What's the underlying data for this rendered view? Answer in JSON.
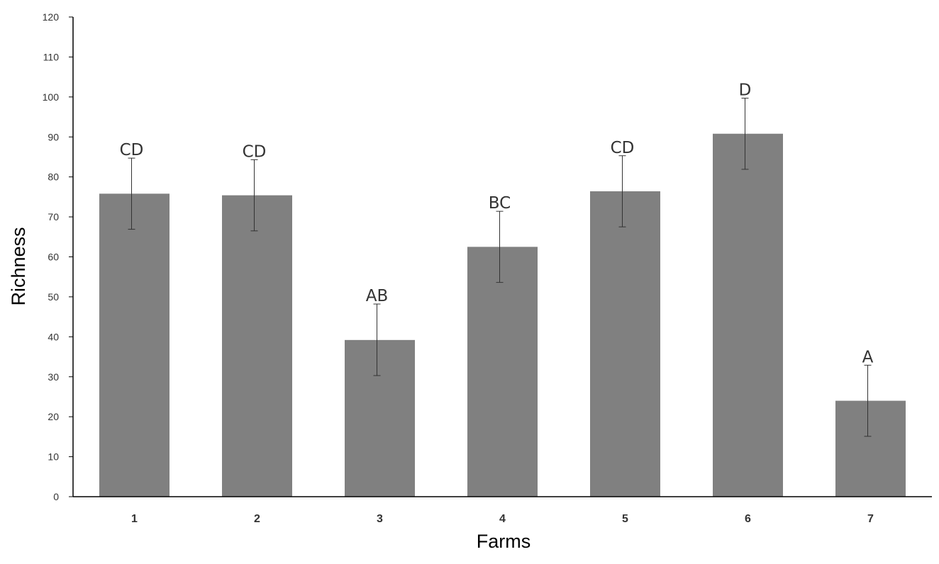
{
  "chart_data": {
    "type": "bar",
    "title": "",
    "xlabel": "Farms",
    "ylabel": "Richness",
    "categories": [
      "1",
      "2",
      "3",
      "4",
      "5",
      "6",
      "7"
    ],
    "values": [
      75.8,
      75.4,
      39.2,
      62.5,
      76.4,
      90.8,
      24.0
    ],
    "error_upper": [
      84.7,
      84.3,
      48.2,
      71.4,
      85.3,
      99.7,
      32.9
    ],
    "error_lower": [
      66.9,
      66.5,
      30.3,
      53.6,
      67.5,
      81.9,
      15.1
    ],
    "significance_labels": [
      "CD",
      "CD",
      "AB",
      "BC",
      "CD",
      "D",
      "A"
    ],
    "ylim": [
      0,
      120
    ],
    "yticks": [
      0,
      10,
      20,
      30,
      40,
      50,
      60,
      70,
      80,
      90,
      100,
      110,
      120
    ],
    "grid": false,
    "legend": "none",
    "bar_color": "#808080"
  }
}
